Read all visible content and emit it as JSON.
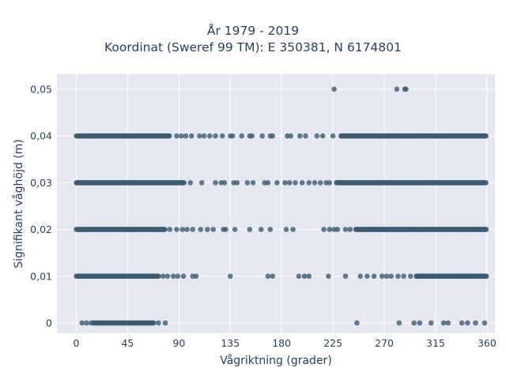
{
  "chart_data": {
    "type": "scatter",
    "title_line1": "År 1979 - 2019",
    "title_line2": "Koordinat (Sweref 99 TM): E 350381, N 6174801",
    "xlabel": "Vågriktning (grader)",
    "ylabel": "Signifikant våghöjd (m)",
    "xlim": [
      -17,
      367
    ],
    "ylim": [
      -0.0022,
      0.0532
    ],
    "x_ticks": [
      0,
      45,
      90,
      135,
      180,
      225,
      270,
      315,
      360
    ],
    "x_tick_labels": [
      "0",
      "45",
      "90",
      "135",
      "180",
      "225",
      "270",
      "315",
      "360"
    ],
    "y_ticks": [
      0,
      0.01,
      0.02,
      0.03,
      0.04,
      0.05
    ],
    "y_tick_labels": [
      "0",
      "0,01",
      "0,02",
      "0,03",
      "0,04",
      "0,05"
    ],
    "grid": true,
    "marker_color": "#3c5a70",
    "background_color": "#e5e8f1",
    "series": [
      {
        "y": 0.05,
        "note_dense_ranges": [],
        "points": [
          226,
          281,
          288,
          289
        ]
      },
      {
        "y": 0.04,
        "dense_ranges": [
          [
            0,
            82
          ],
          [
            232,
            360
          ]
        ],
        "points": [
          88,
          92,
          96,
          101,
          108,
          112,
          117,
          122,
          128,
          135,
          137,
          145,
          152,
          154,
          163,
          170,
          172,
          185,
          188,
          196,
          201,
          211,
          216,
          225,
          290,
          305,
          320
        ]
      },
      {
        "y": 0.03,
        "dense_ranges": [
          [
            0,
            95
          ],
          [
            228,
            360
          ]
        ],
        "points": [
          100,
          110,
          122,
          127,
          130,
          138,
          141,
          150,
          155,
          165,
          168,
          176,
          183,
          187,
          192,
          198,
          204,
          209,
          214,
          219,
          222
        ]
      },
      {
        "y": 0.02,
        "dense_ranges": [
          [
            0,
            78
          ],
          [
            245,
            360
          ]
        ],
        "points": [
          82,
          88,
          93,
          97,
          102,
          109,
          115,
          120,
          129,
          131,
          139,
          152,
          162,
          170,
          184,
          190,
          217,
          222,
          226,
          229,
          236,
          240
        ]
      },
      {
        "y": 0.01,
        "dense_ranges": [
          [
            0,
            72
          ],
          [
            298,
            360
          ]
        ],
        "points": [
          76,
          80,
          85,
          89,
          94,
          102,
          105,
          135,
          168,
          172,
          195,
          200,
          204,
          221,
          236,
          249,
          255,
          261,
          268,
          272,
          276,
          282,
          287,
          293
        ]
      },
      {
        "y": 0.0,
        "dense_ranges": [
          [
            15,
            68
          ]
        ],
        "points": [
          5,
          9,
          13,
          72,
          78,
          246,
          283,
          296,
          301,
          311,
          322,
          326,
          338,
          343,
          350,
          358
        ]
      }
    ]
  }
}
